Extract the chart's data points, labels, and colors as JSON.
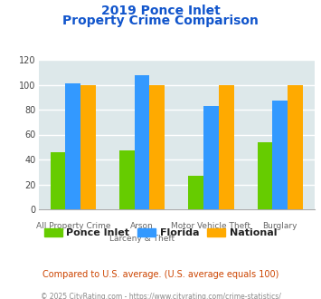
{
  "title_line1": "2019 Ponce Inlet",
  "title_line2": "Property Crime Comparison",
  "cat_labels_top": [
    "",
    "Arson",
    "Motor Vehicle Theft",
    ""
  ],
  "cat_labels_bot": [
    "All Property Crime",
    "Larceny & Theft",
    "",
    "Burglary"
  ],
  "ponce_inlet": [
    46,
    47,
    27,
    54
  ],
  "florida": [
    101,
    108,
    83,
    87
  ],
  "national": [
    100,
    100,
    100,
    100
  ],
  "color_ponce": "#66cc00",
  "color_florida": "#3399ff",
  "color_national": "#ffaa00",
  "ylim": [
    0,
    120
  ],
  "yticks": [
    0,
    20,
    40,
    60,
    80,
    100,
    120
  ],
  "bg_color": "#dde8ea",
  "title_color": "#1155cc",
  "subtitle_text": "Compared to U.S. average. (U.S. average equals 100)",
  "subtitle_color": "#cc4400",
  "footer_text": "© 2025 CityRating.com - https://www.cityrating.com/crime-statistics/",
  "footer_color": "#888888",
  "legend_labels": [
    "Ponce Inlet",
    "Florida",
    "National"
  ]
}
